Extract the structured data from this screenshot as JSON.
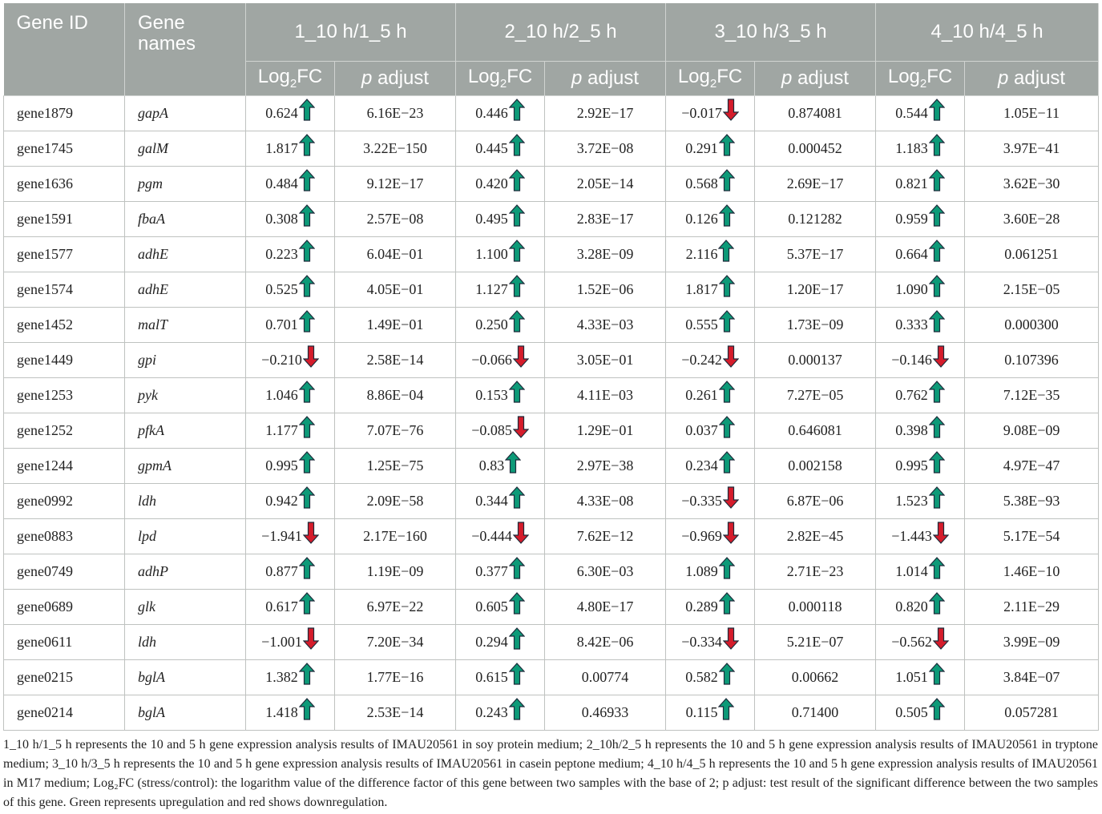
{
  "header": {
    "gene_id": "Gene ID",
    "gene_names": "Gene names",
    "groups": [
      "1_10 h/1_5 h",
      "2_10 h/2_5 h",
      "3_10 h/3_5 h",
      "4_10 h/4_5 h"
    ],
    "log_prefix": "Log",
    "log_sub": "2",
    "log_suffix": "FC",
    "p_italic": "p",
    "p_rest": " adjust"
  },
  "colors": {
    "up": "#0d9a78",
    "down": "#d51c2b"
  },
  "rows": [
    {
      "id": "gene1879",
      "name": "gapA",
      "v": [
        [
          "0.624",
          "up"
        ],
        "6.16E−23",
        [
          "0.446",
          "up"
        ],
        "2.92E−17",
        [
          "−0.017",
          "down"
        ],
        "0.874081",
        [
          "0.544",
          "up"
        ],
        "1.05E−11"
      ]
    },
    {
      "id": "gene1745",
      "name": "galM",
      "v": [
        [
          "1.817",
          "up"
        ],
        "3.22E−150",
        [
          "0.445",
          "up"
        ],
        "3.72E−08",
        [
          "0.291",
          "up"
        ],
        "0.000452",
        [
          "1.183",
          "up"
        ],
        "3.97E−41"
      ]
    },
    {
      "id": "gene1636",
      "name": "pgm",
      "v": [
        [
          "0.484",
          "up"
        ],
        "9.12E−17",
        [
          "0.420",
          "up"
        ],
        "2.05E−14",
        [
          "0.568",
          "up"
        ],
        "2.69E−17",
        [
          "0.821",
          "up"
        ],
        "3.62E−30"
      ]
    },
    {
      "id": "gene1591",
      "name": "fbaA",
      "v": [
        [
          "0.308",
          "up"
        ],
        "2.57E−08",
        [
          "0.495",
          "up"
        ],
        "2.83E−17",
        [
          "0.126",
          "up"
        ],
        "0.121282",
        [
          "0.959",
          "up"
        ],
        "3.60E−28"
      ]
    },
    {
      "id": "gene1577",
      "name": "adhE",
      "v": [
        [
          "0.223",
          "up"
        ],
        "6.04E−01",
        [
          "1.100",
          "up"
        ],
        "3.28E−09",
        [
          "2.116",
          "up"
        ],
        "5.37E−17",
        [
          "0.664",
          "up"
        ],
        "0.061251"
      ]
    },
    {
      "id": "gene1574",
      "name": "adhE",
      "v": [
        [
          "0.525",
          "up"
        ],
        "4.05E−01",
        [
          "1.127",
          "up"
        ],
        "1.52E−06",
        [
          "1.817",
          "up"
        ],
        "1.20E−17",
        [
          "1.090",
          "up"
        ],
        "2.15E−05"
      ]
    },
    {
      "id": "gene1452",
      "name": "malT",
      "v": [
        [
          "0.701",
          "up"
        ],
        "1.49E−01",
        [
          "0.250",
          "up"
        ],
        "4.33E−03",
        [
          "0.555",
          "up"
        ],
        "1.73E−09",
        [
          "0.333",
          "up"
        ],
        "0.000300"
      ]
    },
    {
      "id": "gene1449",
      "name": "gpi",
      "v": [
        [
          "−0.210",
          "down"
        ],
        "2.58E−14",
        [
          "−0.066",
          "down"
        ],
        "3.05E−01",
        [
          "−0.242",
          "down"
        ],
        "0.000137",
        [
          "−0.146",
          "down"
        ],
        "0.107396"
      ]
    },
    {
      "id": "gene1253",
      "name": "pyk",
      "v": [
        [
          "1.046",
          "up"
        ],
        "8.86E−04",
        [
          "0.153",
          "up"
        ],
        "4.11E−03",
        [
          "0.261",
          "up"
        ],
        "7.27E−05",
        [
          "0.762",
          "up"
        ],
        "7.12E−35"
      ]
    },
    {
      "id": "gene1252",
      "name": "pfkA",
      "v": [
        [
          "1.177",
          "up"
        ],
        "7.07E−76",
        [
          "−0.085",
          "down"
        ],
        "1.29E−01",
        [
          "0.037",
          "up"
        ],
        "0.646081",
        [
          "0.398",
          "up"
        ],
        "9.08E−09"
      ]
    },
    {
      "id": "gene1244",
      "name": "gpmA",
      "v": [
        [
          "0.995",
          "up"
        ],
        "1.25E−75",
        [
          "0.83",
          "up"
        ],
        "2.97E−38",
        [
          "0.234",
          "up"
        ],
        "0.002158",
        [
          "0.995",
          "up"
        ],
        "4.97E−47"
      ]
    },
    {
      "id": "gene0992",
      "name": "ldh",
      "v": [
        [
          "0.942",
          "up"
        ],
        "2.09E−58",
        [
          "0.344",
          "up"
        ],
        "4.33E−08",
        [
          "−0.335",
          "down"
        ],
        "6.87E−06",
        [
          "1.523",
          "up"
        ],
        "5.38E−93"
      ]
    },
    {
      "id": "gene0883",
      "name": "lpd",
      "v": [
        [
          "−1.941",
          "down"
        ],
        "2.17E−160",
        [
          "−0.444",
          "down"
        ],
        "7.62E−12",
        [
          "−0.969",
          "down"
        ],
        "2.82E−45",
        [
          "−1.443",
          "down"
        ],
        "5.17E−54"
      ]
    },
    {
      "id": "gene0749",
      "name": "adhP",
      "v": [
        [
          "0.877",
          "up"
        ],
        "1.19E−09",
        [
          "0.377",
          "up"
        ],
        "6.30E−03",
        [
          "1.089",
          "up"
        ],
        "2.71E−23",
        [
          "1.014",
          "up"
        ],
        "1.46E−10"
      ]
    },
    {
      "id": "gene0689",
      "name": "glk",
      "v": [
        [
          "0.617",
          "up"
        ],
        "6.97E−22",
        [
          "0.605",
          "up"
        ],
        "4.80E−17",
        [
          "0.289",
          "up"
        ],
        "0.000118",
        [
          "0.820",
          "up"
        ],
        "2.11E−29"
      ]
    },
    {
      "id": "gene0611",
      "name": "ldh",
      "v": [
        [
          "−1.001",
          "down"
        ],
        "7.20E−34",
        [
          "0.294",
          "up"
        ],
        "8.42E−06",
        [
          "−0.334",
          "down"
        ],
        "5.21E−07",
        [
          "−0.562",
          "down"
        ],
        "3.99E−09"
      ]
    },
    {
      "id": "gene0215",
      "name": "bglA",
      "v": [
        [
          "1.382",
          "up"
        ],
        "1.77E−16",
        [
          "0.615",
          "up"
        ],
        "0.00774",
        [
          "0.582",
          "up"
        ],
        "0.00662",
        [
          "1.051",
          "up"
        ],
        "3.84E−07"
      ]
    },
    {
      "id": "gene0214",
      "name": "bglA",
      "v": [
        [
          "1.418",
          "up"
        ],
        "2.53E−14",
        [
          "0.243",
          "up"
        ],
        "0.46933",
        [
          "0.115",
          "up"
        ],
        "0.71400",
        [
          "0.505",
          "up"
        ],
        "0.057281"
      ]
    }
  ],
  "footnote": "1_10 h/1_5 h represents the 10 and 5 h gene expression analysis results of IMAU20561 in soy protein medium; 2_10h/2_5 h represents the 10 and 5 h gene expression analysis results of IMAU20561 in tryptone medium; 3_10 h/3_5 h represents the 10 and 5 h gene expression analysis results of IMAU20561 in casein peptone medium; 4_10 h/4_5 h represents the 10 and 5 h gene expression analysis results of IMAU20561 in M17 medium; Log₂FC (stress/control): the logarithm value of the difference factor of this gene between two samples with the base of 2; p adjust: test result of the significant difference between the two samples of this gene. Green represents upregulation and red shows downregulation."
}
